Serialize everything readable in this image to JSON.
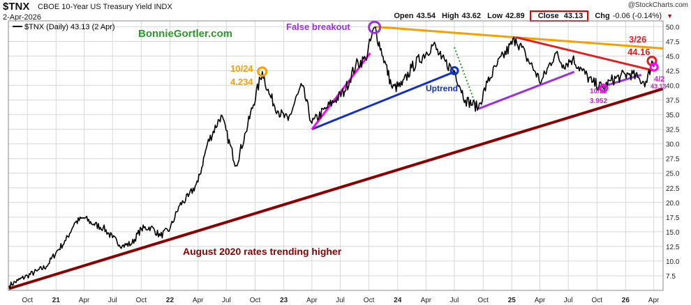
{
  "header": {
    "symbol": "$TNX",
    "name": "CBOE 10-Year US Treasury Yield INDX",
    "date": "2-Apr-2026",
    "credit": "@StockCharts.com",
    "open_label": "Open",
    "open": "43.54",
    "high_label": "High",
    "high": "43.62",
    "low_label": "Low",
    "low": "42.89",
    "close_label": "Close",
    "close": "43.13",
    "chg_label": "Chg",
    "chg": "-0.06 (-0.14%)",
    "legend": "$TNX (Daily) 43.13 (2 Apr)"
  },
  "colors": {
    "price": "#000000",
    "orange": "#f5a000",
    "red": "#e02020",
    "darkred": "#8b0000",
    "blue": "#1030c8",
    "purple": "#9a30e0",
    "magenta": "#ff00ff",
    "green": "#1f9a1f",
    "grid": "#d7d7d7"
  },
  "chart_data": {
    "type": "line",
    "y_ticks": [
      "7.5",
      "10.0",
      "12.5",
      "15.0",
      "17.5",
      "20.0",
      "22.5",
      "25.0",
      "27.5",
      "30.0",
      "32.5",
      "35.0",
      "37.5",
      "40.0",
      "42.5",
      "45.0",
      "47.5",
      "50.0"
    ],
    "ylim": [
      5.0,
      51.0
    ],
    "x_ticks": [
      "Oct",
      "21",
      "Apr",
      "Jul",
      "Oct",
      "22",
      "Apr",
      "Jul",
      "Oct",
      "23",
      "Apr",
      "Jul",
      "Oct",
      "24",
      "Apr",
      "Jul",
      "Oct",
      "25",
      "Apr",
      "Jul",
      "Oct",
      "26",
      "Apr"
    ],
    "x_start": "2020-08-01",
    "grid": true,
    "series": [
      {
        "name": "$TNX (Daily) 43.13 (2 Apr)",
        "points": [
          [
            "2020-08-03",
            5.8
          ],
          [
            "2020-09-01",
            6.7
          ],
          [
            "2020-10-01",
            7.5
          ],
          [
            "2020-11-01",
            8.3
          ],
          [
            "2020-12-01",
            9.1
          ],
          [
            "2021-01-01",
            11.5
          ],
          [
            "2021-02-01",
            13.5
          ],
          [
            "2021-03-01",
            16.5
          ],
          [
            "2021-03-31",
            17.4
          ],
          [
            "2021-05-01",
            16.3
          ],
          [
            "2021-06-01",
            15.7
          ],
          [
            "2021-07-01",
            14.0
          ],
          [
            "2021-08-01",
            12.6
          ],
          [
            "2021-09-01",
            13.0
          ],
          [
            "2021-10-01",
            15.5
          ],
          [
            "2021-11-01",
            15.8
          ],
          [
            "2021-12-01",
            14.3
          ],
          [
            "2022-01-01",
            15.5
          ],
          [
            "2022-02-01",
            19.5
          ],
          [
            "2022-03-01",
            21.0
          ],
          [
            "2022-04-01",
            23.5
          ],
          [
            "2022-05-01",
            30.0
          ],
          [
            "2022-06-14",
            34.9
          ],
          [
            "2022-08-01",
            26.3
          ],
          [
            "2022-09-01",
            32.0
          ],
          [
            "2022-10-24",
            42.34
          ],
          [
            "2022-11-15",
            38.5
          ],
          [
            "2022-12-15",
            35.5
          ],
          [
            "2023-01-15",
            34.0
          ],
          [
            "2023-02-15",
            38.5
          ],
          [
            "2023-03-01",
            39.9
          ],
          [
            "2023-04-01",
            33.5
          ],
          [
            "2023-05-15",
            36.0
          ],
          [
            "2023-06-15",
            37.5
          ],
          [
            "2023-07-15",
            39.0
          ],
          [
            "2023-08-20",
            43.5
          ],
          [
            "2023-09-20",
            44.5
          ],
          [
            "2023-10-19",
            49.9
          ],
          [
            "2023-11-15",
            45.0
          ],
          [
            "2023-12-15",
            39.5
          ],
          [
            "2024-01-15",
            40.0
          ],
          [
            "2024-02-15",
            43.0
          ],
          [
            "2024-04-25",
            47.0
          ],
          [
            "2024-05-20",
            44.5
          ],
          [
            "2024-07-01",
            42.5
          ],
          [
            "2024-08-05",
            37.5
          ],
          [
            "2024-09-16",
            36.2
          ],
          [
            "2024-10-15",
            40.5
          ],
          [
            "2024-11-15",
            43.5
          ],
          [
            "2025-01-14",
            48.0
          ],
          [
            "2025-02-15",
            45.0
          ],
          [
            "2025-03-15",
            42.5
          ],
          [
            "2025-04-05",
            40.5
          ],
          [
            "2025-05-20",
            45.5
          ],
          [
            "2025-06-15",
            43.5
          ],
          [
            "2025-07-15",
            44.5
          ],
          [
            "2025-08-15",
            42.5
          ],
          [
            "2025-09-15",
            40.5
          ],
          [
            "2025-10-22",
            39.52
          ],
          [
            "2025-11-15",
            40.8
          ],
          [
            "2025-12-15",
            41.5
          ],
          [
            "2026-01-15",
            42.0
          ],
          [
            "2026-02-15",
            41.0
          ],
          [
            "2026-03-10",
            40.5
          ],
          [
            "2026-03-26",
            44.16
          ],
          [
            "2026-04-02",
            43.13
          ]
        ]
      }
    ],
    "annotations": {
      "title_note": "BonnieGortler.com",
      "false_breakout": "False breakout",
      "uptrend": "Uptrend",
      "august": "August 2020 rates trending higher",
      "oct24_date": "10/24",
      "oct24_value": "4.234",
      "mar26_date": "3/26",
      "mar26_value": "44.16",
      "apr2_date": "4/2",
      "apr2_value": "43.13",
      "oct22_date": "10/22",
      "oct22_value": "3.952"
    },
    "trendlines": [
      {
        "name": "august-2020-trendline",
        "color": "darkred",
        "from": [
          "2020-08-03",
          5.3
        ],
        "to": [
          "2026-04-30",
          39.4
        ]
      },
      {
        "name": "resistance-orange",
        "color": "orange",
        "from": [
          "2023-10-19",
          50.0
        ],
        "to": [
          "2026-04-30",
          46.3
        ]
      },
      {
        "name": "resistance-red",
        "color": "red",
        "from": [
          "2025-01-14",
          48.2
        ],
        "to": [
          "2026-04-02",
          42.5
        ]
      },
      {
        "name": "uptrend-blue",
        "color": "blue",
        "from": [
          "2023-04-01",
          32.5
        ],
        "to": [
          "2024-07-01",
          42.3
        ]
      },
      {
        "name": "magenta-steep",
        "color": "magenta",
        "from": [
          "2023-04-01",
          32.5
        ],
        "to": [
          "2023-10-05",
          45.5
        ]
      },
      {
        "name": "purple-support-1",
        "color": "purple",
        "from": [
          "2024-09-16",
          36.0
        ],
        "to": [
          "2025-07-20",
          42.3
        ]
      },
      {
        "name": "purple-support-2",
        "color": "purple",
        "from": [
          "2025-10-01",
          39.5
        ],
        "to": [
          "2026-02-20",
          41.8
        ]
      },
      {
        "name": "green-downtrend",
        "color": "green",
        "from": [
          "2024-07-01",
          46.5
        ],
        "to": [
          "2024-09-10",
          36.3
        ]
      }
    ]
  }
}
